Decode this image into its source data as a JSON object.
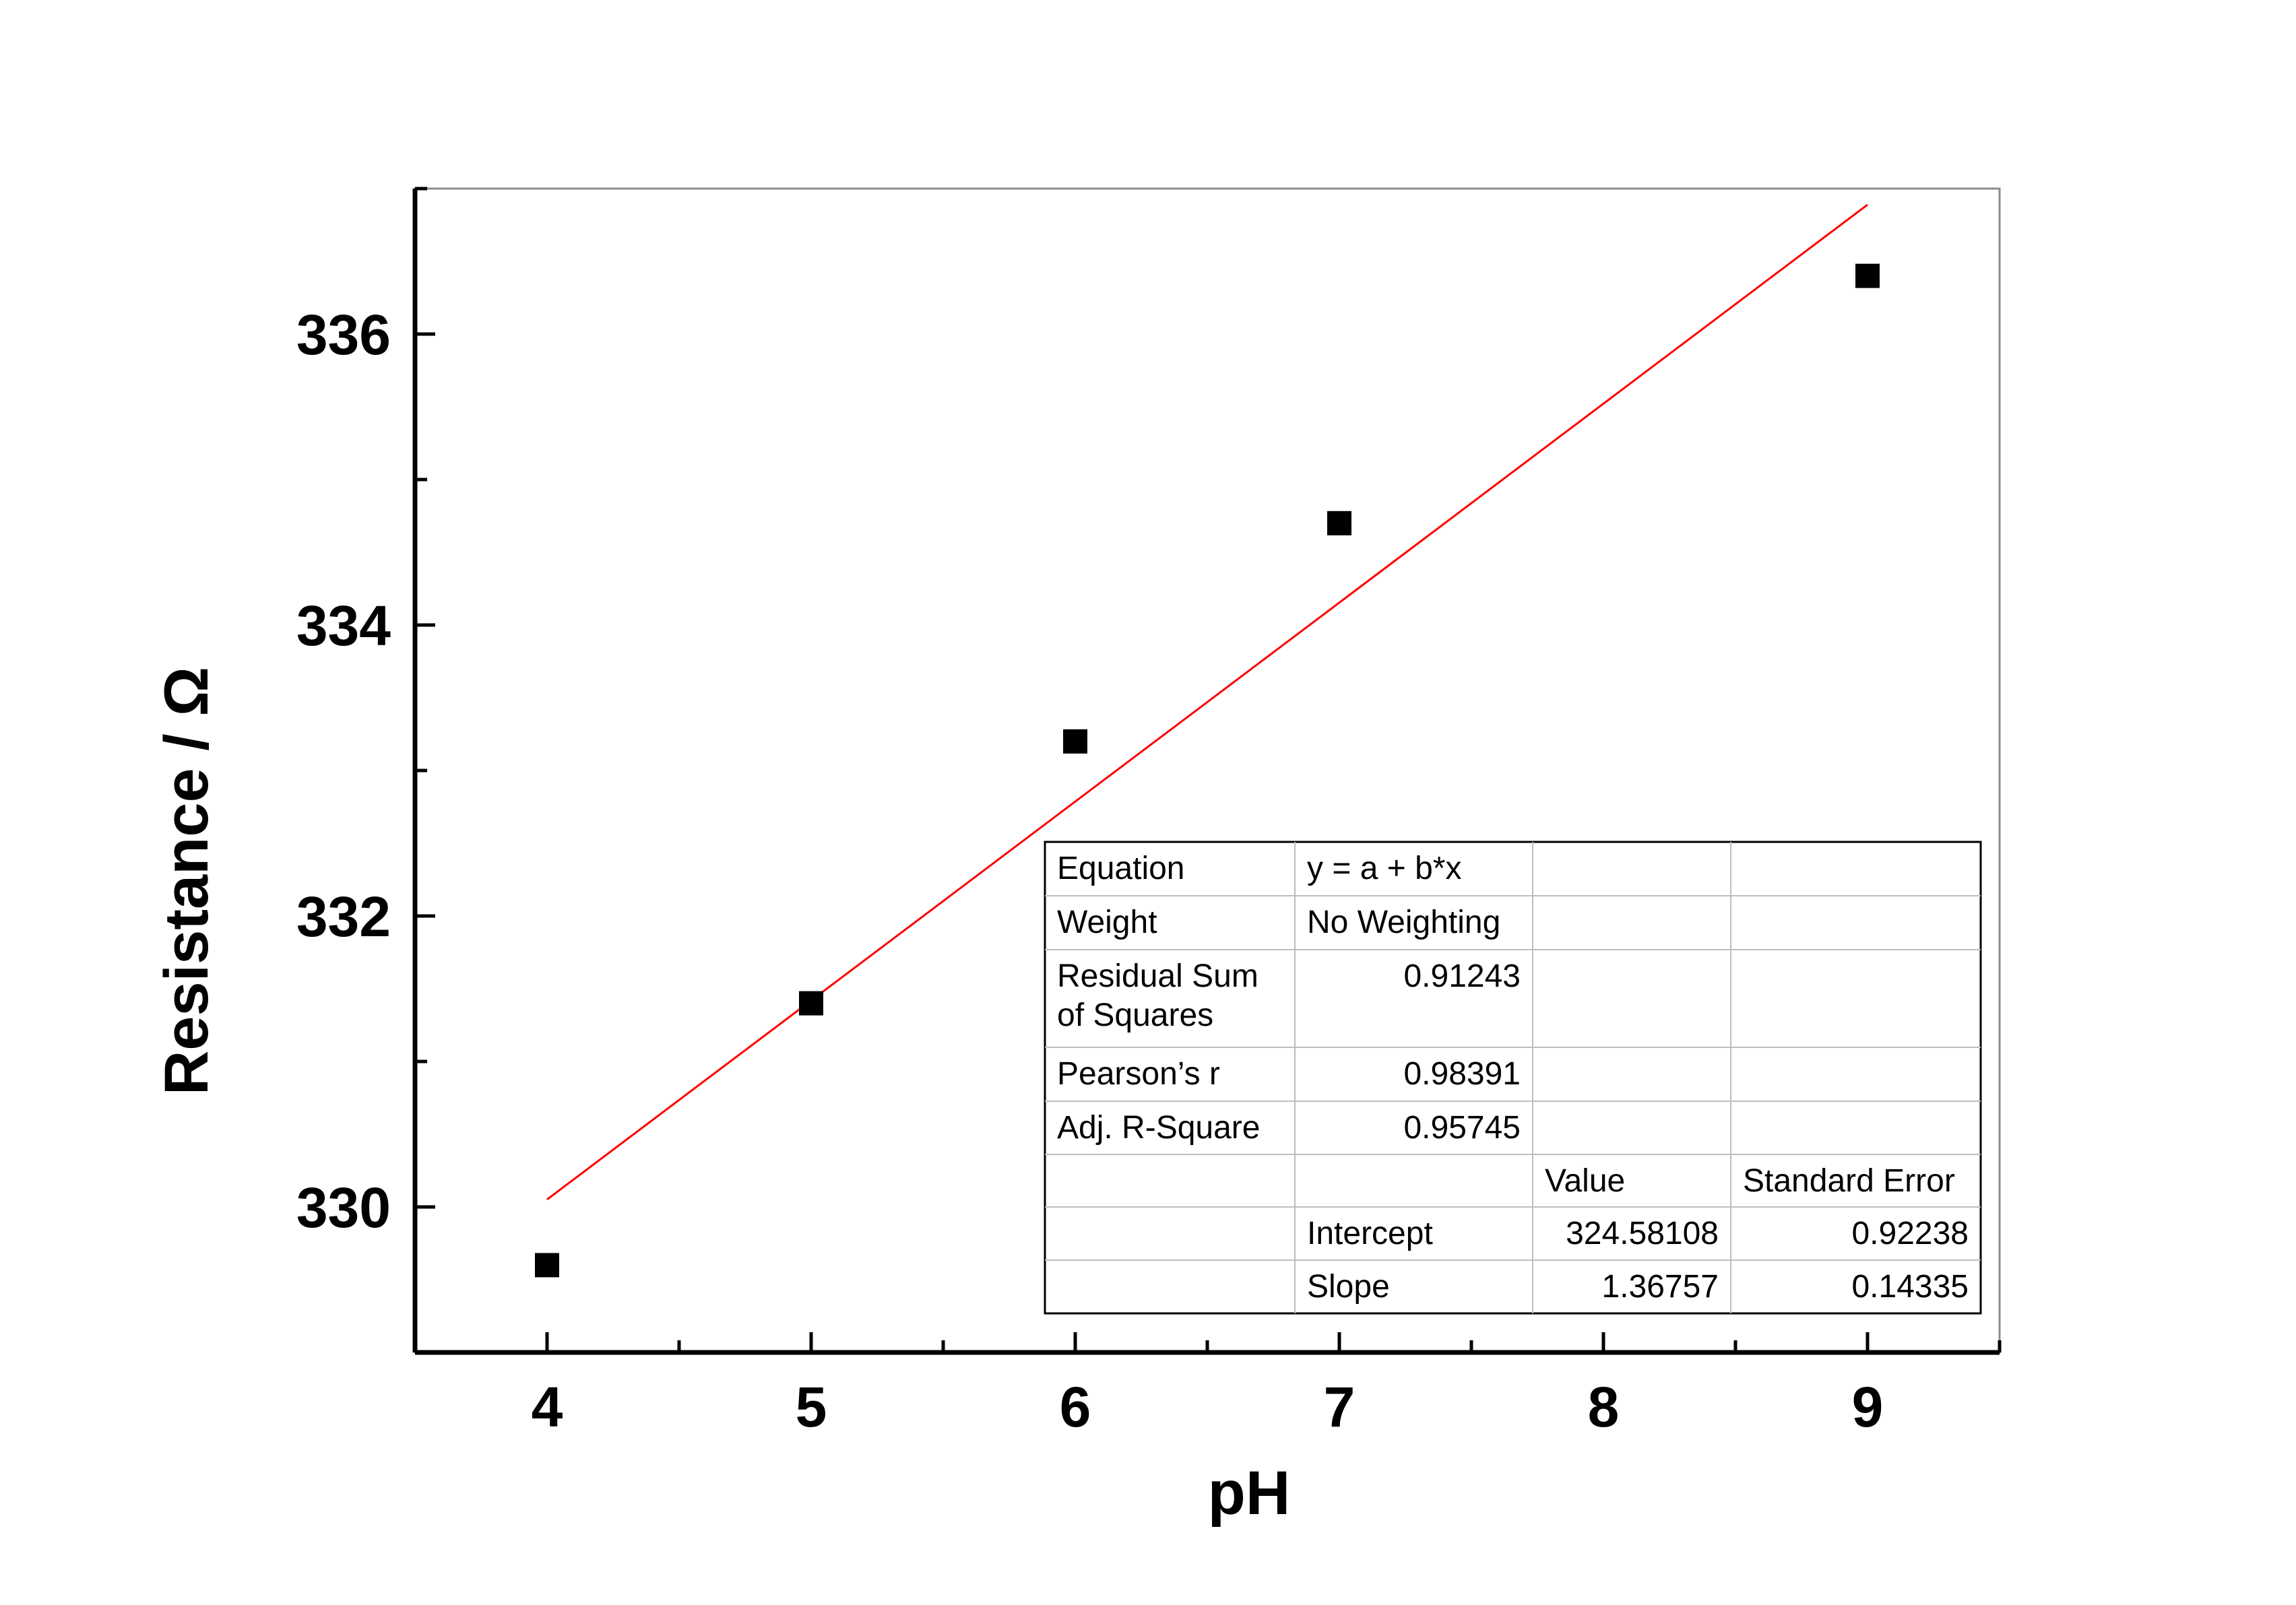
{
  "chart_data": {
    "type": "scatter",
    "title": "",
    "xlabel": "pH",
    "ylabel": "Resistance / Ω",
    "xlim": [
      3.5,
      9.5
    ],
    "ylim": [
      329.0,
      337.0
    ],
    "xticks": [
      4,
      5,
      6,
      7,
      8,
      9
    ],
    "xtick_labels": [
      "4",
      "5",
      "6",
      "7",
      "8",
      "9"
    ],
    "yticks": [
      330,
      332,
      334,
      336
    ],
    "ytick_labels": [
      "330",
      "332",
      "334",
      "336"
    ],
    "grid": false,
    "legend": "none",
    "series": [
      {
        "kind": "scatter",
        "marker": "square",
        "color": "#000000",
        "x": [
          4,
          5,
          6,
          7,
          9
        ],
        "y": [
          329.6,
          331.4,
          333.2,
          334.7,
          336.4
        ]
      },
      {
        "kind": "line",
        "color": "#ff0000",
        "intercept": 324.58108,
        "slope": 1.36757,
        "x": [
          4,
          9
        ]
      }
    ],
    "fit_table": {
      "rows": [
        [
          "Equation",
          "y = a + b*x",
          "",
          ""
        ],
        [
          "Weight",
          "No Weighting",
          "",
          ""
        ],
        [
          "Residual Sum\nof Squares",
          "0.91243",
          "",
          ""
        ],
        [
          "Pearson’s r",
          "0.98391",
          "",
          ""
        ],
        [
          "Adj. R-Square",
          "0.95745",
          "",
          ""
        ],
        [
          "",
          "",
          "Value",
          "Standard Error"
        ],
        [
          "",
          "Intercept",
          "324.58108",
          "0.92238"
        ],
        [
          "",
          "Slope",
          "1.36757",
          "0.14335"
        ]
      ]
    }
  }
}
